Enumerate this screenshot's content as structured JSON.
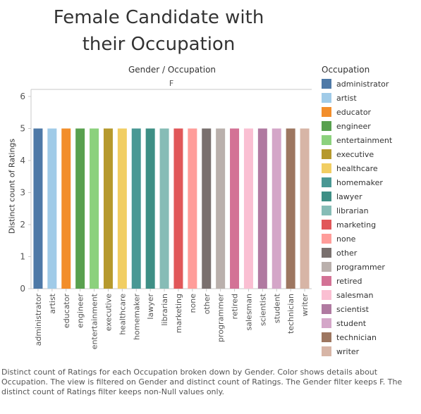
{
  "title_line1": "Female Candidate with",
  "title_line2": "their Occupation",
  "header_label": "Gender / Occupation",
  "facet_label": "F",
  "legend_title": "Occupation",
  "caption": "Distinct count of Ratings for each Occupation broken down by Gender.  Color shows details about Occupation. The view is filtered on Gender and distinct count of Ratings. The Gender filter keeps F. The distinct count of Ratings filter keeps non-Null values only.",
  "chart_data": {
    "type": "bar",
    "title": "Female Candidate with their Occupation",
    "xlabel": "",
    "ylabel": "Distinct count of Ratings",
    "ylim": [
      0,
      6
    ],
    "yticks": [
      0,
      1,
      2,
      3,
      4,
      5,
      6
    ],
    "grid": false,
    "legend_position": "right",
    "categories": [
      "administrator",
      "artist",
      "educator",
      "engineer",
      "entertainment",
      "executive",
      "healthcare",
      "homemaker",
      "lawyer",
      "librarian",
      "marketing",
      "none",
      "other",
      "programmer",
      "retired",
      "salesman",
      "scientist",
      "student",
      "technician",
      "writer"
    ],
    "values": [
      5,
      5,
      5,
      5,
      5,
      5,
      5,
      5,
      5,
      5,
      5,
      5,
      5,
      5,
      5,
      5,
      5,
      5,
      5,
      5
    ],
    "colors": [
      "#4e79a7",
      "#a0cbe8",
      "#f28e2b",
      "#59a14f",
      "#8cd17d",
      "#b6992d",
      "#f1ce63",
      "#499894",
      "#3e8f85",
      "#86bcb6",
      "#e15759",
      "#ff9d9a",
      "#79706e",
      "#bab0ac",
      "#d37295",
      "#fabfd2",
      "#b07aa1",
      "#d4a6c8",
      "#9d7660",
      "#d7b5a6"
    ]
  }
}
